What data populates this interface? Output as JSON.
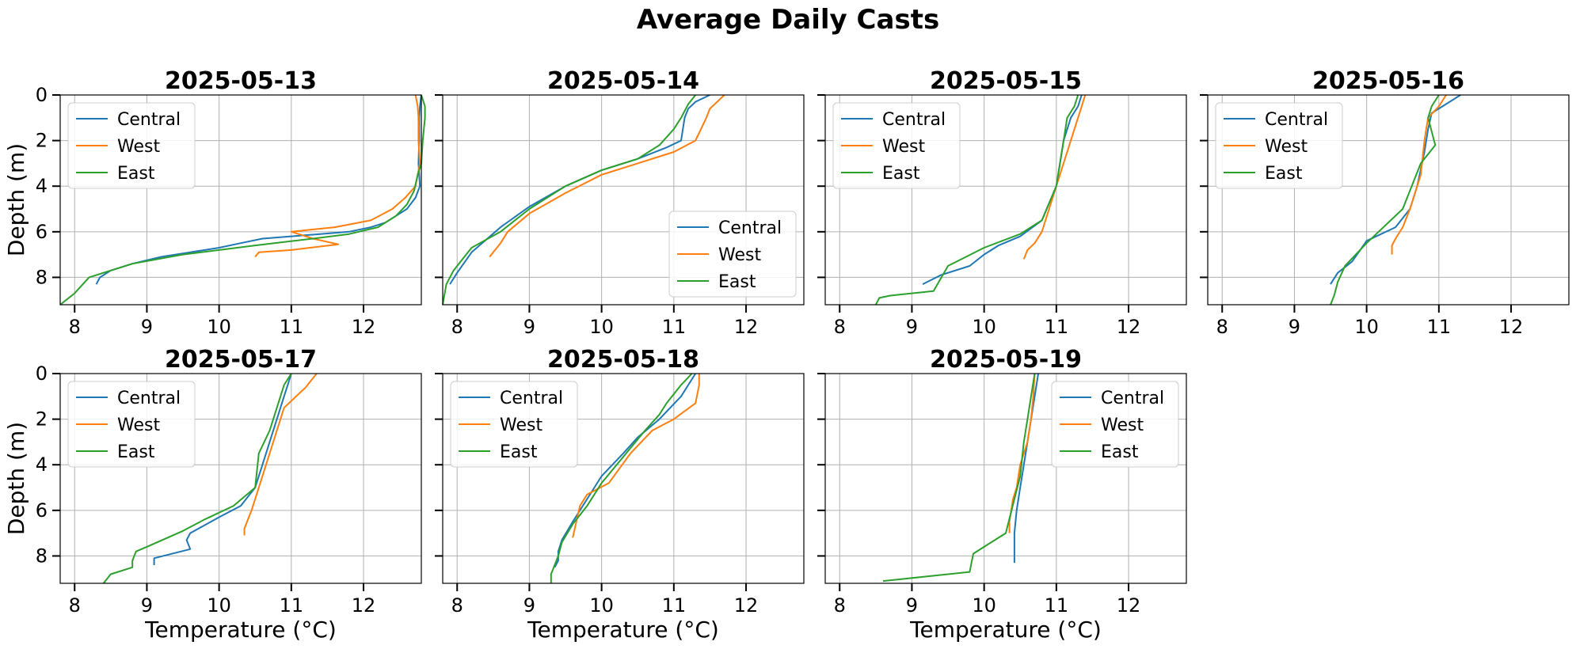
{
  "figure": {
    "title": "Average Daily Casts",
    "ylabel": "Depth (m)",
    "xlabel": "Temperature (°C)"
  },
  "colors": {
    "Central": "#1f77b4",
    "West": "#ff7f0e",
    "East": "#2ca02c"
  },
  "chart_data": [
    {
      "type": "line",
      "title": "2025-05-13",
      "xlim": [
        7.8,
        12.8
      ],
      "ylim": [
        9.2,
        0
      ],
      "xticks": [
        8,
        9,
        10,
        11,
        12
      ],
      "yticks": [
        0,
        2,
        4,
        6,
        8
      ],
      "grid": true,
      "legend": "upper-left",
      "series": [
        {
          "name": "Central",
          "x": [
            12.8,
            12.78,
            12.77,
            12.77,
            12.76,
            12.78,
            12.72,
            12.6,
            12.45,
            12.3,
            12.1,
            11.8,
            11.4,
            11.0,
            10.6,
            10.3,
            10.0,
            9.6,
            9.2,
            8.8,
            8.5,
            8.35,
            8.3
          ],
          "y": [
            0,
            0.5,
            1,
            2,
            3,
            4,
            4.5,
            5,
            5.3,
            5.6,
            5.8,
            6.0,
            6.1,
            6.2,
            6.3,
            6.5,
            6.7,
            6.9,
            7.1,
            7.4,
            7.7,
            8.0,
            8.3
          ]
        },
        {
          "name": "West",
          "x": [
            12.72,
            12.75,
            12.76,
            12.76,
            12.78,
            12.72,
            12.58,
            12.4,
            12.1,
            11.6,
            11.0,
            11.3,
            11.65,
            11.0,
            10.55,
            10.5
          ],
          "y": [
            0,
            0.5,
            1,
            2,
            3,
            4,
            4.5,
            5,
            5.5,
            5.8,
            6.0,
            6.3,
            6.55,
            6.8,
            6.9,
            7.1
          ]
        },
        {
          "name": "East",
          "x": [
            12.8,
            12.85,
            12.85,
            12.82,
            12.8,
            12.75,
            12.7,
            12.6,
            12.45,
            12.2,
            11.8,
            11.3,
            10.5,
            9.5,
            8.8,
            8.5,
            8.2,
            8.0,
            7.8
          ],
          "y": [
            0,
            0.5,
            1,
            2,
            3,
            3.5,
            4.2,
            4.8,
            5.3,
            5.8,
            6.1,
            6.3,
            6.6,
            7.0,
            7.4,
            7.7,
            8.0,
            8.7,
            9.2
          ]
        }
      ]
    },
    {
      "type": "line",
      "title": "2025-05-14",
      "xlim": [
        7.8,
        12.8
      ],
      "ylim": [
        9.2,
        0
      ],
      "xticks": [
        8,
        9,
        10,
        11,
        12
      ],
      "yticks": [
        0,
        2,
        4,
        6,
        8
      ],
      "grid": true,
      "legend": "lower-right",
      "series": [
        {
          "name": "Central",
          "x": [
            11.5,
            11.3,
            11.2,
            11.15,
            11.1,
            10.9,
            10.5,
            10.0,
            9.5,
            9.0,
            8.6,
            8.2,
            8.0,
            7.9
          ],
          "y": [
            0,
            0.3,
            0.6,
            1.0,
            2.0,
            2.3,
            2.8,
            3.3,
            4.0,
            4.9,
            5.8,
            6.9,
            7.8,
            8.3
          ]
        },
        {
          "name": "West",
          "x": [
            11.7,
            11.6,
            11.5,
            11.45,
            11.3,
            11.0,
            10.5,
            10.0,
            9.5,
            9.0,
            8.7,
            8.6,
            8.5,
            8.45
          ],
          "y": [
            0,
            0.3,
            0.6,
            1.0,
            2.0,
            2.5,
            3.0,
            3.5,
            4.3,
            5.2,
            6.0,
            6.5,
            6.9,
            7.1
          ]
        },
        {
          "name": "East",
          "x": [
            11.3,
            11.2,
            11.1,
            11.0,
            10.8,
            10.5,
            10.0,
            9.5,
            9.0,
            8.6,
            8.2,
            7.95,
            7.85,
            7.8
          ],
          "y": [
            0,
            0.4,
            1.0,
            1.5,
            2.2,
            2.8,
            3.3,
            4.0,
            5.0,
            6.0,
            6.7,
            7.7,
            8.3,
            9.2
          ]
        }
      ]
    },
    {
      "type": "line",
      "title": "2025-05-15",
      "xlim": [
        7.8,
        12.8
      ],
      "ylim": [
        9.2,
        0
      ],
      "xticks": [
        8,
        9,
        10,
        11,
        12
      ],
      "yticks": [
        0,
        2,
        4,
        6,
        8
      ],
      "grid": true,
      "legend": "upper-left",
      "series": [
        {
          "name": "Central",
          "x": [
            11.35,
            11.3,
            11.2,
            11.1,
            11.0,
            10.8,
            10.5,
            10.2,
            10.0,
            9.8,
            9.4,
            9.15
          ],
          "y": [
            0,
            0.5,
            1.0,
            2.0,
            4.0,
            5.5,
            6.2,
            6.6,
            7.0,
            7.5,
            7.9,
            8.3
          ]
        },
        {
          "name": "West",
          "x": [
            11.4,
            11.35,
            11.3,
            11.2,
            11.0,
            10.9,
            10.8,
            10.7,
            10.6,
            10.55
          ],
          "y": [
            0,
            0.5,
            1.0,
            2.0,
            4.0,
            5.0,
            6.0,
            6.5,
            6.8,
            7.2
          ]
        },
        {
          "name": "East",
          "x": [
            11.3,
            11.25,
            11.15,
            11.1,
            11.0,
            10.8,
            10.5,
            10.0,
            9.5,
            9.3,
            8.7,
            8.55,
            8.5
          ],
          "y": [
            0,
            0.5,
            1.0,
            2.0,
            4.0,
            5.5,
            6.1,
            6.7,
            7.5,
            8.6,
            8.8,
            8.9,
            9.2
          ]
        }
      ]
    },
    {
      "type": "line",
      "title": "2025-05-16",
      "xlim": [
        7.8,
        12.8
      ],
      "ylim": [
        9.2,
        0
      ],
      "xticks": [
        8,
        9,
        10,
        11,
        12
      ],
      "yticks": [
        0,
        2,
        4,
        6,
        8
      ],
      "grid": true,
      "legend": "upper-left",
      "series": [
        {
          "name": "Central",
          "x": [
            11.3,
            11.1,
            10.9,
            10.85,
            10.8,
            10.7,
            10.6,
            10.4,
            10.0,
            9.8,
            9.6,
            9.5
          ],
          "y": [
            0,
            0.4,
            0.8,
            1.5,
            2.5,
            4.0,
            5.0,
            5.8,
            6.4,
            7.3,
            7.8,
            8.3
          ]
        },
        {
          "name": "West",
          "x": [
            11.1,
            11.0,
            10.85,
            10.8,
            10.75,
            10.6,
            10.5,
            10.4,
            10.35,
            10.35
          ],
          "y": [
            0,
            0.5,
            1.0,
            2.0,
            3.5,
            5.0,
            5.8,
            6.3,
            6.6,
            7.0
          ]
        },
        {
          "name": "East",
          "x": [
            11.0,
            10.9,
            10.85,
            10.95,
            10.75,
            10.5,
            10.0,
            9.7,
            9.6,
            9.55,
            9.5
          ],
          "y": [
            0,
            0.5,
            1.0,
            2.2,
            3.0,
            5.0,
            6.5,
            7.5,
            8.2,
            8.8,
            9.2
          ]
        }
      ]
    },
    {
      "type": "line",
      "title": "2025-05-17",
      "xlim": [
        7.8,
        12.8
      ],
      "ylim": [
        9.2,
        0
      ],
      "xticks": [
        8,
        9,
        10,
        11,
        12
      ],
      "yticks": [
        0,
        2,
        4,
        6,
        8
      ],
      "grid": true,
      "legend": "upper-left",
      "series": [
        {
          "name": "Central",
          "x": [
            11.0,
            10.95,
            10.9,
            10.8,
            10.7,
            10.6,
            10.5,
            10.3,
            10.0,
            9.6,
            9.55,
            9.6,
            9.1,
            9.1
          ],
          "y": [
            0,
            0.5,
            1.0,
            2.0,
            3.0,
            4.0,
            5.0,
            5.8,
            6.3,
            7.0,
            7.3,
            7.7,
            8.1,
            8.4
          ]
        },
        {
          "name": "West",
          "x": [
            11.35,
            11.2,
            11.0,
            10.9,
            10.8,
            10.7,
            10.6,
            10.5,
            10.45,
            10.4,
            10.35,
            10.35
          ],
          "y": [
            0,
            0.6,
            1.2,
            1.5,
            2.5,
            3.5,
            4.5,
            5.5,
            6.0,
            6.4,
            6.8,
            7.1
          ]
        },
        {
          "name": "East",
          "x": [
            11.0,
            10.9,
            10.8,
            10.7,
            10.55,
            10.5,
            10.2,
            9.8,
            9.5,
            9.0,
            8.85,
            8.8,
            8.8,
            8.5,
            8.4
          ],
          "y": [
            0,
            0.5,
            1.5,
            2.5,
            3.5,
            5.0,
            5.8,
            6.4,
            6.9,
            7.6,
            7.8,
            8.2,
            8.5,
            8.8,
            9.2
          ]
        }
      ]
    },
    {
      "type": "line",
      "title": "2025-05-18",
      "xlim": [
        7.8,
        12.8
      ],
      "ylim": [
        9.2,
        0
      ],
      "xticks": [
        8,
        9,
        10,
        11,
        12
      ],
      "yticks": [
        0,
        2,
        4,
        6,
        8
      ],
      "grid": true,
      "legend": "upper-left",
      "series": [
        {
          "name": "Central",
          "x": [
            11.3,
            11.2,
            11.1,
            10.8,
            10.5,
            10.3,
            10.0,
            9.8,
            9.6,
            9.45,
            9.4,
            9.4,
            9.35
          ],
          "y": [
            0,
            0.5,
            1.0,
            2.0,
            2.8,
            3.5,
            4.5,
            5.5,
            6.5,
            7.3,
            7.8,
            8.2,
            8.5
          ]
        },
        {
          "name": "West",
          "x": [
            11.35,
            11.35,
            11.3,
            11.0,
            10.7,
            10.4,
            10.1,
            9.8,
            9.7,
            9.65,
            9.6
          ],
          "y": [
            0,
            0.5,
            1.3,
            2.0,
            2.5,
            3.5,
            4.8,
            5.3,
            5.8,
            6.5,
            7.2
          ]
        },
        {
          "name": "East",
          "x": [
            11.25,
            11.1,
            10.9,
            10.8,
            10.6,
            10.0,
            9.8,
            9.6,
            9.45,
            9.4,
            9.3,
            9.3
          ],
          "y": [
            0,
            0.5,
            1.3,
            1.8,
            2.5,
            4.8,
            5.8,
            6.6,
            7.4,
            8.0,
            8.8,
            9.2
          ]
        }
      ]
    },
    {
      "type": "line",
      "title": "2025-05-19",
      "xlim": [
        7.8,
        12.8
      ],
      "ylim": [
        9.2,
        0
      ],
      "xticks": [
        8,
        9,
        10,
        11,
        12
      ],
      "yticks": [
        0,
        2,
        4,
        6,
        8
      ],
      "grid": true,
      "legend": "upper-right",
      "series": [
        {
          "name": "Central",
          "x": [
            10.75,
            10.7,
            10.65,
            10.6,
            10.55,
            10.5,
            10.45,
            10.42,
            10.42
          ],
          "y": [
            0,
            1.0,
            2.0,
            3.0,
            4.0,
            5.0,
            6.0,
            7.0,
            8.3
          ]
        },
        {
          "name": "West",
          "x": [
            10.7,
            10.68,
            10.65,
            10.6,
            10.5,
            10.45,
            10.4,
            10.35,
            10.35
          ],
          "y": [
            0,
            1.0,
            2.0,
            3.0,
            4.0,
            5.0,
            5.5,
            6.5,
            7.0
          ]
        },
        {
          "name": "East",
          "x": [
            10.7,
            10.65,
            10.6,
            10.55,
            10.5,
            10.3,
            10.0,
            9.85,
            9.8,
            9.2,
            8.6
          ],
          "y": [
            0,
            1.0,
            2.0,
            3.0,
            4.5,
            7.0,
            7.6,
            7.9,
            8.7,
            8.9,
            9.1
          ]
        }
      ]
    }
  ]
}
